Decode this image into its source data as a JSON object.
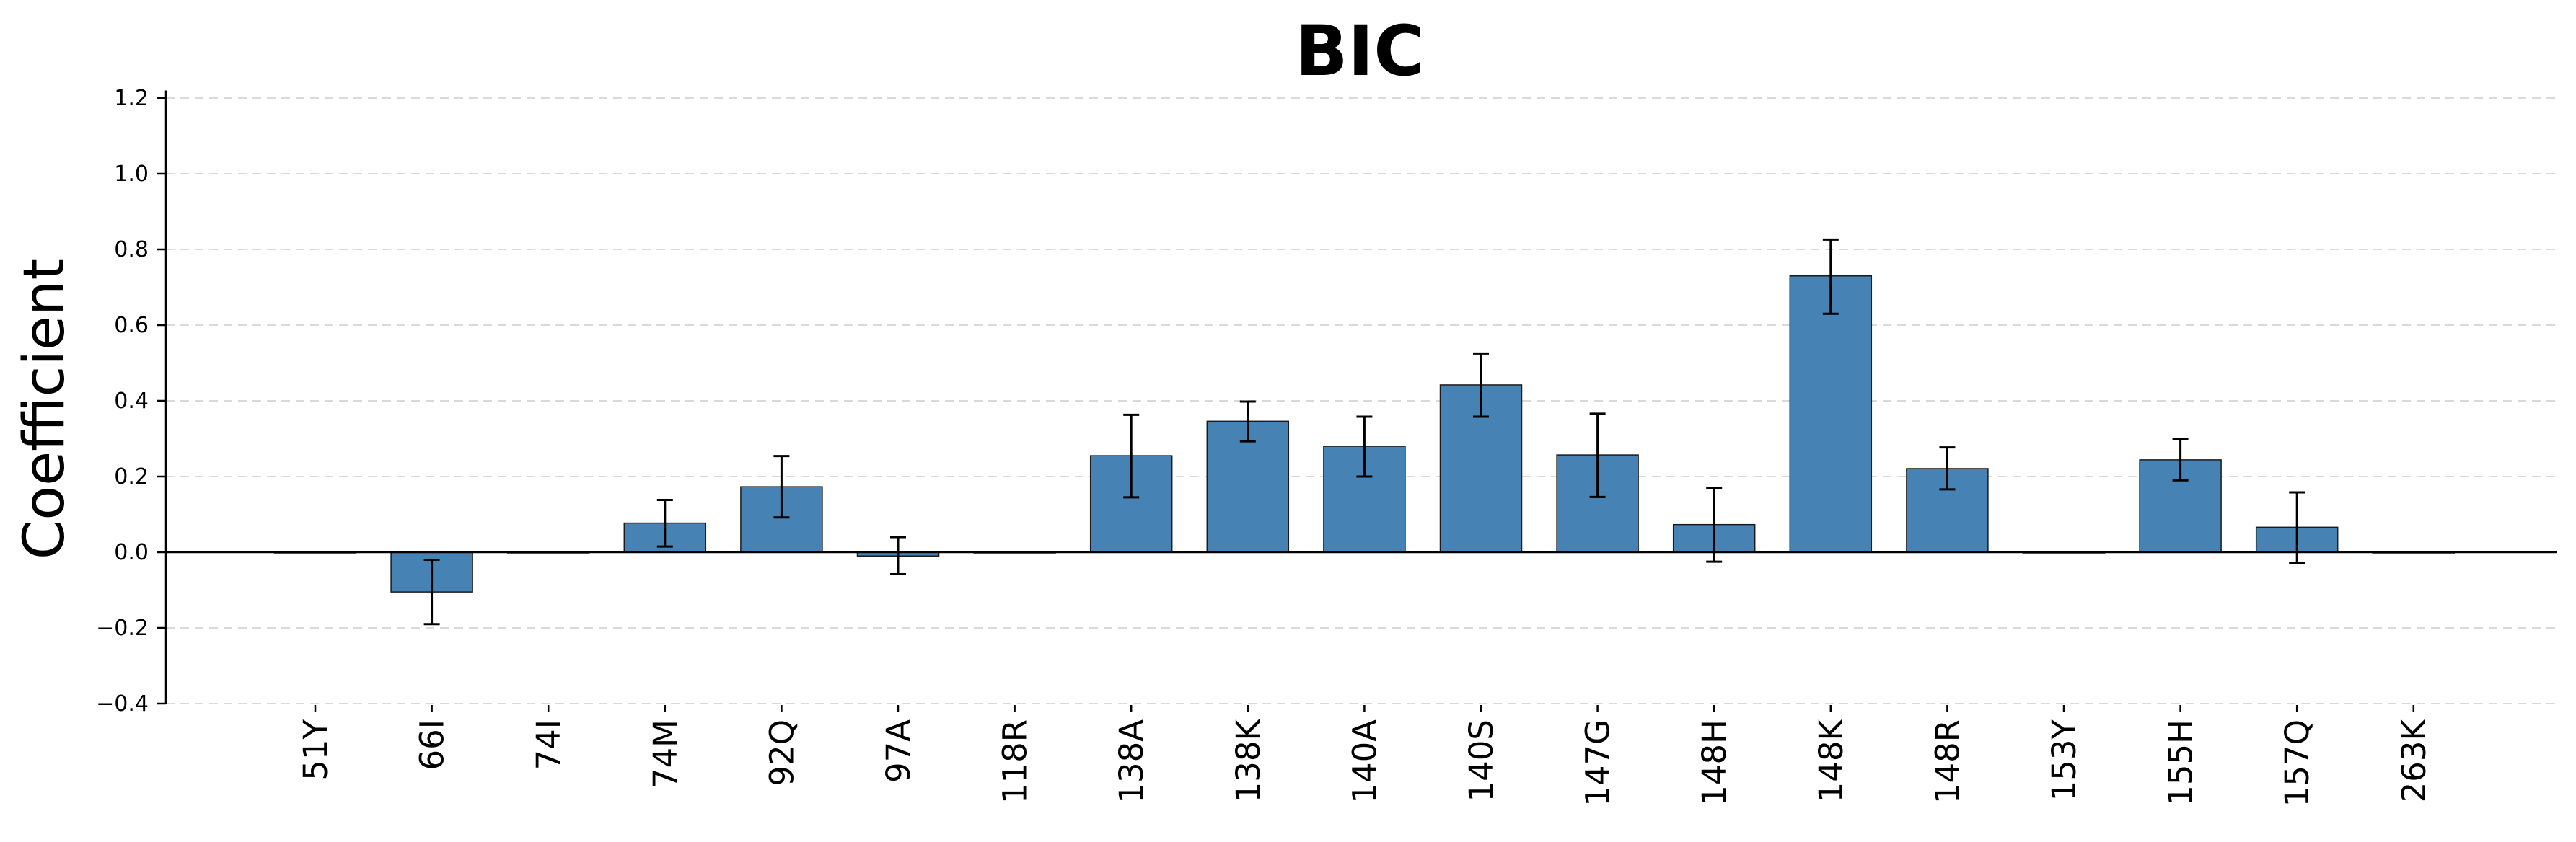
{
  "chart_data": {
    "type": "bar",
    "title": "BIC",
    "xlabel": "",
    "ylabel": "Coefficient",
    "categories": [
      "51Y",
      "66I",
      "74I",
      "74M",
      "92Q",
      "97A",
      "118R",
      "138A",
      "138K",
      "140A",
      "140S",
      "147G",
      "148H",
      "148K",
      "148R",
      "153Y",
      "155H",
      "157Q",
      "263K"
    ],
    "values": [
      0.0,
      -0.105,
      0.0,
      0.077,
      0.173,
      -0.01,
      0.0,
      0.255,
      0.346,
      0.28,
      0.442,
      0.257,
      0.073,
      0.73,
      0.221,
      0.0,
      0.244,
      0.066,
      0.0
    ],
    "error_low": [
      null,
      -0.19,
      null,
      0.015,
      0.092,
      -0.058,
      null,
      0.145,
      0.293,
      0.2,
      0.358,
      0.146,
      -0.025,
      0.63,
      0.166,
      null,
      0.19,
      -0.028,
      null
    ],
    "error_high": [
      null,
      -0.02,
      null,
      0.138,
      0.254,
      0.04,
      null,
      0.363,
      0.398,
      0.358,
      0.525,
      0.366,
      0.17,
      0.826,
      0.277,
      null,
      0.298,
      0.158,
      null
    ],
    "ylim": [
      -0.4,
      1.22
    ],
    "yticks": [
      -0.4,
      -0.2,
      0.0,
      0.2,
      0.4,
      0.6,
      0.8,
      1.0,
      1.2
    ],
    "ytick_labels": [
      "−0.4",
      "−0.2",
      "0.0",
      "0.2",
      "0.4",
      "0.6",
      "0.8",
      "1.0",
      "1.2"
    ],
    "grid": "horizontal dashed",
    "bar_color": "#4682b4",
    "edge_color": "#1a1a1a"
  }
}
